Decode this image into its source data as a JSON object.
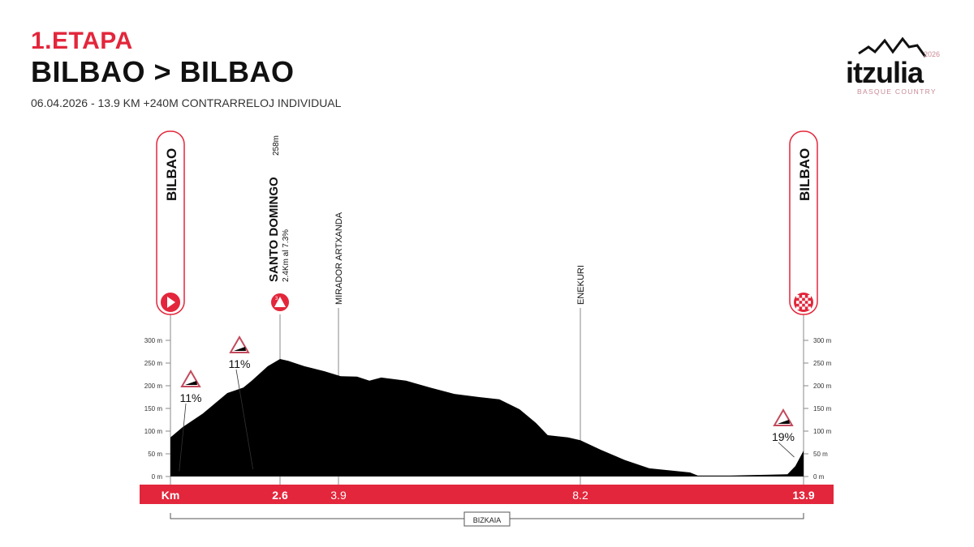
{
  "header": {
    "stage": "1.ETAPA",
    "route": "BILBAO > BILBAO",
    "meta": "06.04.2026 - 13.9 KM  +240M  CONTRARRELOJ INDIVIDUAL"
  },
  "logo": {
    "text": "itzulia",
    "year": "2026",
    "subtitle": "BASQUE COUNTRY"
  },
  "colors": {
    "accent": "#e3263b",
    "profile": "#000000",
    "logo_pink": "#c98a96"
  },
  "chart_data": {
    "type": "area",
    "x_unit_label": "Km",
    "y_ticks": [
      "0 m",
      "50 m",
      "100 m",
      "150 m",
      "200 m",
      "250 m",
      "300 m"
    ],
    "ylim": [
      0,
      300
    ],
    "xlim": [
      0,
      13.9
    ],
    "profile": {
      "km": [
        0,
        0.29,
        0.77,
        1.35,
        1.73,
        1.93,
        2.31,
        2.6,
        2.78,
        3.14,
        3.59,
        3.94,
        4.23,
        4.45,
        4.66,
        5.1,
        5.53,
        5.96,
        6.4,
        6.76,
        7.12,
        7.41,
        7.62,
        7.98,
        8.2,
        8.72,
        9.34,
        9.96,
        11.0,
        11.2,
        12.03,
        13.49,
        13.69,
        13.9
      ],
      "alt": [
        86,
        109,
        139,
        184,
        196,
        211,
        243,
        259,
        255,
        243,
        232,
        221,
        220,
        211,
        218,
        211,
        196,
        182,
        175,
        170,
        148,
        118,
        91,
        86,
        80,
        59,
        36,
        18,
        9,
        2,
        2,
        5,
        23,
        57
      ]
    },
    "km_marks": [
      {
        "km": 0,
        "label": "Km"
      },
      {
        "km": 2.6,
        "label": "2.6"
      },
      {
        "km": 3.9,
        "label": "3.9"
      },
      {
        "km": 8.2,
        "label": "8.2"
      },
      {
        "km": 13.9,
        "label": "13.9"
      }
    ],
    "points": {
      "start": {
        "name": "BILBAO",
        "icon": "start-play-icon"
      },
      "finish": {
        "name": "BILBAO",
        "icon": "finish-checkered-icon"
      },
      "climb": {
        "name": "SANTO DOMINGO",
        "altitude": "258m",
        "detail": "2.4Km al 7.3%",
        "category": "3",
        "icon": "mountain-cat3-icon"
      },
      "mirador": {
        "name": "MIRADOR ARTXANDA"
      },
      "enekuri": {
        "name": "ENEKURI"
      }
    },
    "gradients": [
      {
        "km": 0.15,
        "label": "11%"
      },
      {
        "km": 1.9,
        "label": "11%"
      },
      {
        "km": 13.6,
        "label": "19%"
      }
    ],
    "region": "BIZKAIA"
  }
}
